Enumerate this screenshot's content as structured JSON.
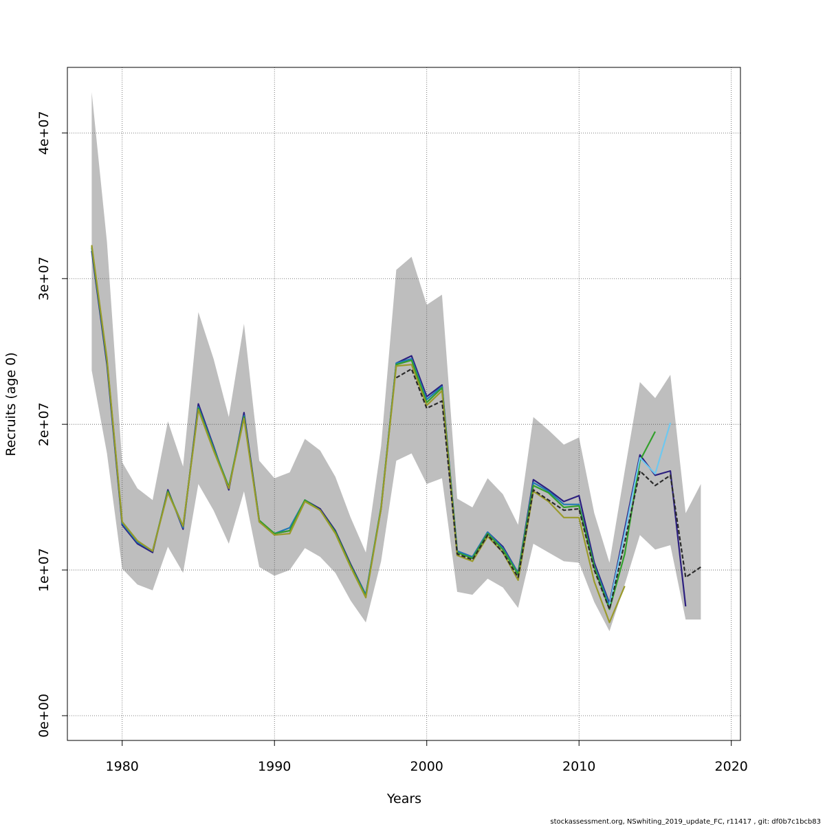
{
  "chart_data": {
    "type": "line",
    "title": "",
    "xlabel": "Years",
    "ylabel": "Recruits (age 0)",
    "xlim": [
      1976.4,
      2020.6
    ],
    "ylim": [
      -1700000,
      44500000
    ],
    "x_ticks": [
      1980,
      1990,
      2000,
      2010,
      2020
    ],
    "x_tick_labels": [
      "1980",
      "1990",
      "2000",
      "2010",
      "2020"
    ],
    "y_ticks": [
      0,
      10000000,
      20000000,
      30000000,
      40000000
    ],
    "y_tick_labels": [
      "0e+00",
      "1e+07",
      "2e+07",
      "3e+07",
      "4e+07"
    ],
    "grid": true,
    "legend": "none",
    "confidence_band": {
      "color": "#bebebe",
      "years": [
        1978,
        1979,
        1980,
        1981,
        1982,
        1983,
        1984,
        1985,
        1986,
        1987,
        1988,
        1989,
        1990,
        1991,
        1992,
        1993,
        1994,
        1995,
        1996,
        1997,
        1998,
        1999,
        2000,
        2001,
        2002,
        2003,
        2004,
        2005,
        2006,
        2007,
        2008,
        2009,
        2010,
        2011,
        2012,
        2013,
        2014,
        2015,
        2016,
        2017,
        2018
      ],
      "upper": [
        42800000,
        32500000,
        17400000,
        15600000,
        14800000,
        20200000,
        17100000,
        27700000,
        24500000,
        20500000,
        26900000,
        17500000,
        16300000,
        16700000,
        19000000,
        18200000,
        16400000,
        13600000,
        11200000,
        18500000,
        30600000,
        31500000,
        28200000,
        28900000,
        14900000,
        14300000,
        16300000,
        15200000,
        13100000,
        20500000,
        19600000,
        18600000,
        19100000,
        13900000,
        10500000,
        16800000,
        22900000,
        21800000,
        23400000,
        13900000,
        15900000
      ],
      "lower": [
        23700000,
        18000000,
        10100000,
        9000000,
        8600000,
        11600000,
        9800000,
        15900000,
        14100000,
        11800000,
        15400000,
        10200000,
        9600000,
        10000000,
        11500000,
        10900000,
        9800000,
        7900000,
        6400000,
        10600000,
        17500000,
        18000000,
        15900000,
        16300000,
        8500000,
        8300000,
        9400000,
        8800000,
        7400000,
        11800000,
        11200000,
        10600000,
        10500000,
        7800000,
        5800000,
        9000000,
        12400000,
        11400000,
        11700000,
        6600000,
        6600000
      ]
    },
    "series": [
      {
        "color": "#2c1f7f",
        "years": [
          1978,
          1979,
          1980,
          1981,
          1982,
          1983,
          1984,
          1985,
          1986,
          1987,
          1988,
          1989,
          1990,
          1991,
          1992,
          1993,
          1994,
          1995,
          1996,
          1997,
          1998,
          1999,
          2000,
          2001,
          2002,
          2003,
          2004,
          2005,
          2006,
          2007,
          2008,
          2009,
          2010,
          2011,
          2012,
          2013,
          2014,
          2015,
          2016,
          2017
        ],
        "values": [
          31900000,
          24100000,
          13100000,
          11800000,
          11200000,
          15500000,
          12800000,
          21400000,
          18500000,
          15500000,
          20800000,
          13400000,
          12500000,
          12700000,
          14800000,
          14200000,
          12700000,
          10400000,
          8300000,
          14200000,
          24200000,
          24700000,
          21900000,
          22700000,
          11300000,
          10900000,
          12600000,
          11600000,
          9800000,
          16200000,
          15500000,
          14700000,
          15100000,
          10500000,
          7700000,
          12800000,
          17900000,
          16500000,
          16800000,
          7500000
        ]
      },
      {
        "color": "#1f78b4",
        "years": [
          1978,
          1979,
          1980,
          1981,
          1982,
          1983,
          1984,
          1985,
          1986,
          1987,
          1988,
          1989,
          1990,
          1991,
          1992,
          1993,
          1994,
          1995,
          1996,
          1997,
          1998,
          1999,
          2000,
          2001,
          2002,
          2003,
          2004,
          2005,
          2006,
          2007,
          2008,
          2009,
          2010,
          2011,
          2012
        ],
        "values": [
          32100000,
          24300000,
          13200000,
          11900000,
          11300000,
          15400000,
          12900000,
          21200000,
          18400000,
          15700000,
          20600000,
          13300000,
          12500000,
          12900000,
          14800000,
          14100000,
          12600000,
          10300000,
          8300000,
          14300000,
          24200000,
          24500000,
          21700000,
          22600000,
          11300000,
          10900000,
          12600000,
          11500000,
          9800000,
          16000000,
          15400000,
          14500000,
          14500000,
          10300000,
          7600000
        ]
      },
      {
        "color": "#33a02c",
        "years": [
          1978,
          1979,
          1980,
          1981,
          1982,
          1983,
          1984,
          1985,
          1986,
          1987,
          1988,
          1989,
          1990,
          1991,
          1992,
          1993,
          1994,
          1995,
          1996,
          1997,
          1998,
          1999,
          2000,
          2001,
          2002,
          2003,
          2004,
          2005,
          2006,
          2007,
          2008,
          2009,
          2010,
          2011,
          2012,
          2013,
          2014,
          2015
        ],
        "values": [
          32200000,
          24400000,
          13300000,
          12000000,
          11300000,
          15400000,
          13000000,
          21100000,
          18300000,
          15700000,
          20500000,
          13400000,
          12500000,
          12700000,
          14800000,
          14100000,
          12600000,
          10300000,
          8200000,
          14300000,
          24100000,
          24400000,
          21500000,
          22500000,
          11200000,
          10800000,
          12500000,
          11400000,
          9700000,
          15800000,
          15300000,
          14300000,
          14400000,
          10200000,
          7300000,
          11100000,
          17500000,
          19500000
        ]
      },
      {
        "color": "#9a9a2a",
        "years": [
          1978,
          1979,
          1980,
          1981,
          1982,
          1983,
          1984,
          1985,
          1986,
          1987,
          1988,
          1989,
          1990,
          1991,
          1992,
          1993,
          1994,
          1995,
          1996,
          1997,
          1998,
          1999,
          2000,
          2001,
          2002,
          2003,
          2004,
          2005,
          2006,
          2007,
          2008,
          2009,
          2010,
          2011,
          2012,
          2013
        ],
        "values": [
          32300000,
          24500000,
          13300000,
          12000000,
          11300000,
          15300000,
          13000000,
          21000000,
          18200000,
          15600000,
          20400000,
          13300000,
          12400000,
          12500000,
          14700000,
          14100000,
          12500000,
          10200000,
          8100000,
          14200000,
          24000000,
          24100000,
          21300000,
          22300000,
          11000000,
          10600000,
          12300000,
          11200000,
          9300000,
          15400000,
          14700000,
          13600000,
          13600000,
          9200000,
          6400000,
          8900000
        ]
      },
      {
        "color": "#6ec8f0",
        "years": [
          2012,
          2013,
          2014,
          2015,
          2016
        ],
        "values": [
          7600000,
          12500000,
          17700000,
          16600000,
          20100000
        ]
      },
      {
        "color": "#2a2a2a",
        "dashed": true,
        "years": [
          1998,
          1999,
          2000,
          2001,
          2002,
          2003,
          2004,
          2005,
          2006,
          2007,
          2008,
          2009,
          2010,
          2011,
          2012,
          2013,
          2014,
          2015,
          2016,
          2017,
          2018
        ],
        "values": [
          23200000,
          23800000,
          21100000,
          21600000,
          11100000,
          10700000,
          12400000,
          11200000,
          9500000,
          15500000,
          14800000,
          14100000,
          14200000,
          10000000,
          7300000,
          11900000,
          16800000,
          15800000,
          16500000,
          9500000,
          10200000
        ]
      }
    ]
  },
  "footer": {
    "text": "stockassessment.org, NSwhiting_2019_update_FC, r11417 , git: df0b7c1bcb83"
  }
}
